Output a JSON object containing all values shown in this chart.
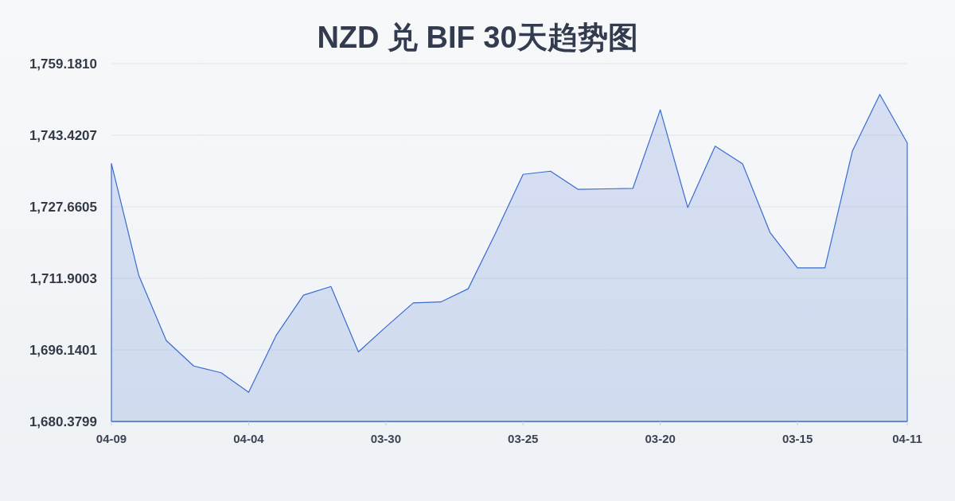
{
  "chart_data": {
    "type": "area",
    "title": "NZD 兑 BIF 30天趋势图",
    "categories": [
      "04-09",
      null,
      null,
      null,
      null,
      "04-04",
      null,
      null,
      null,
      null,
      "03-30",
      null,
      null,
      null,
      null,
      "03-25",
      null,
      null,
      null,
      null,
      "03-20",
      null,
      null,
      null,
      null,
      "03-15",
      null,
      null,
      null,
      "04-11"
    ],
    "values": [
      1737.2,
      1712.5,
      1698.2,
      1692.6,
      1691.1,
      1686.8,
      1699.3,
      1708.2,
      1710.1,
      1695.7,
      1701.2,
      1706.5,
      1706.7,
      1709.6,
      1721.9,
      1734.8,
      1735.5,
      1731.5,
      1731.6,
      1731.7,
      1749.0,
      1727.5,
      1741.0,
      1737.1,
      1722.0,
      1714.2,
      1714.2,
      1739.9,
      1752.4,
      1741.7
    ],
    "color": "#3a6cd0",
    "ylim": [
      1680.3799,
      1759.181
    ],
    "yticks": [
      {
        "value": 1680.3799,
        "label": "1,680.3799"
      },
      {
        "value": 1696.1401,
        "label": "1,696.1401"
      },
      {
        "value": 1711.9003,
        "label": "1,711.9003"
      },
      {
        "value": 1727.6605,
        "label": "1,727.6605"
      },
      {
        "value": 1743.4207,
        "label": "1,743.4207"
      },
      {
        "value": 1759.181,
        "label": "1,759.1810"
      }
    ],
    "grid": "y"
  }
}
